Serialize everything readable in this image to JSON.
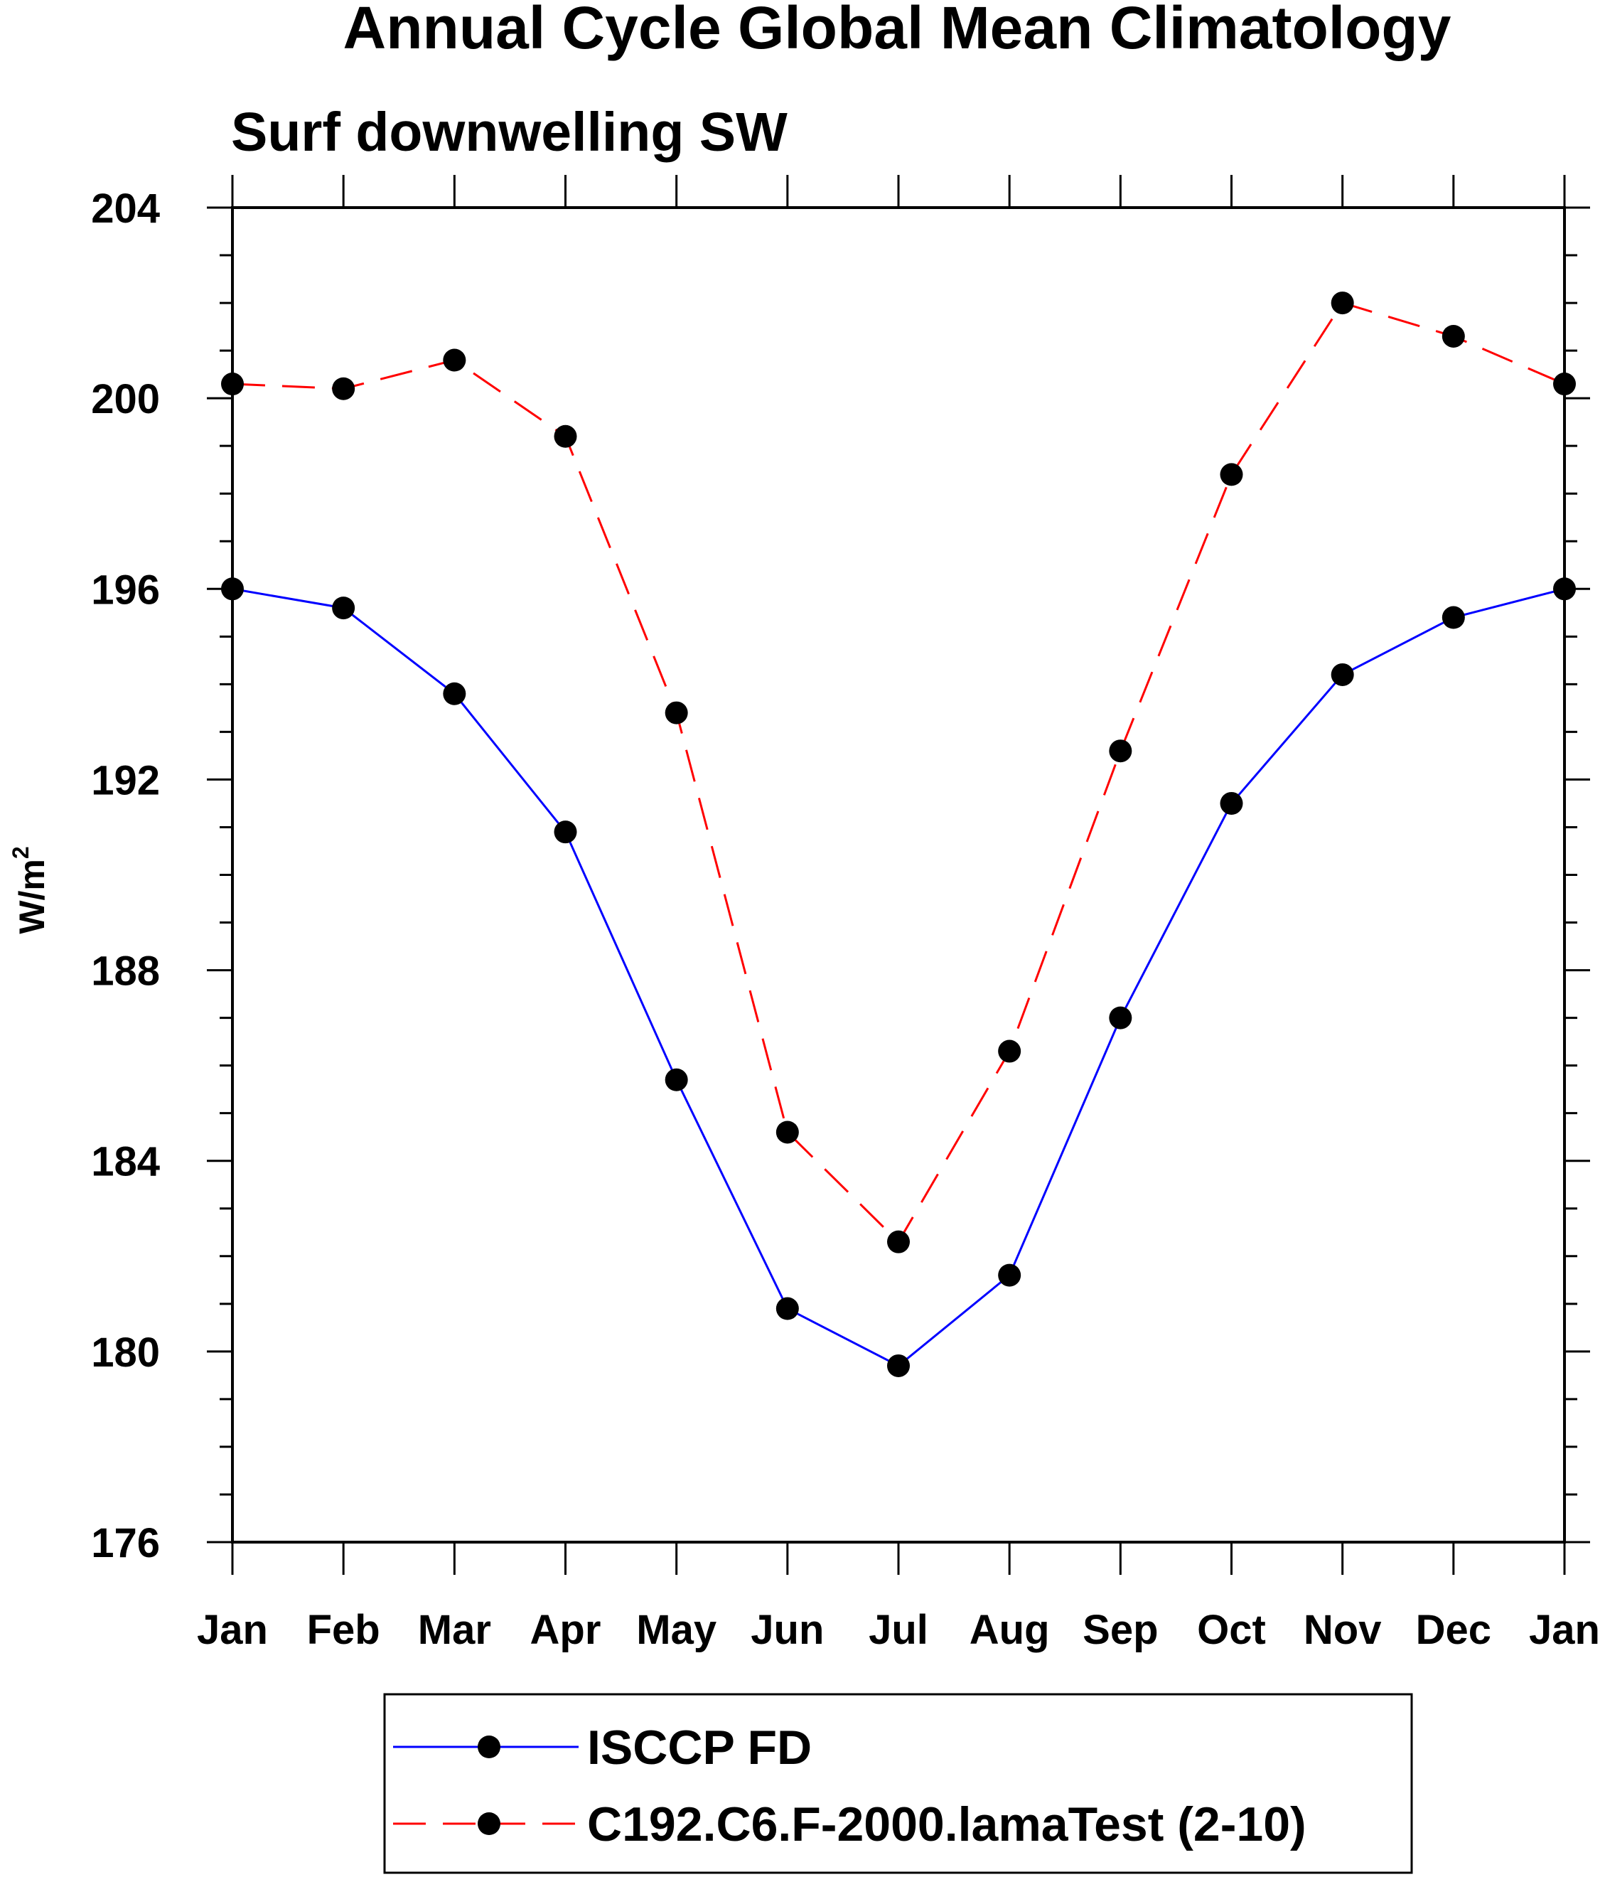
{
  "chart_data": {
    "type": "line",
    "title": "Annual Cycle Global Mean Climatology",
    "subtitle": "Surf downwelling SW",
    "ylabel_base": "W/m",
    "ylabel_sup": "2",
    "xlabel": "",
    "categories": [
      "Jan",
      "Feb",
      "Mar",
      "Apr",
      "May",
      "Jun",
      "Jul",
      "Aug",
      "Sep",
      "Oct",
      "Nov",
      "Dec",
      "Jan"
    ],
    "ylim": [
      176,
      204
    ],
    "yticks": [
      "176",
      "180",
      "184",
      "188",
      "192",
      "196",
      "200",
      "204"
    ],
    "grid": false,
    "legend_position": "bottom",
    "series": [
      {
        "name": "ISCCP FD",
        "color": "#0000ff",
        "line_style": "solid",
        "marker": "filled-circle",
        "values": [
          196.0,
          195.6,
          193.8,
          190.9,
          185.7,
          180.9,
          179.7,
          181.6,
          187.0,
          191.5,
          194.2,
          195.4,
          196.0
        ]
      },
      {
        "name": "C192.C6.F-2000.lamaTest (2-10)",
        "color": "#ff0000",
        "line_style": "dashed",
        "marker": "filled-circle",
        "values": [
          200.3,
          200.2,
          200.8,
          199.2,
          193.4,
          184.6,
          182.3,
          186.3,
          192.6,
          198.4,
          202.0,
          201.3,
          200.3
        ]
      }
    ]
  }
}
